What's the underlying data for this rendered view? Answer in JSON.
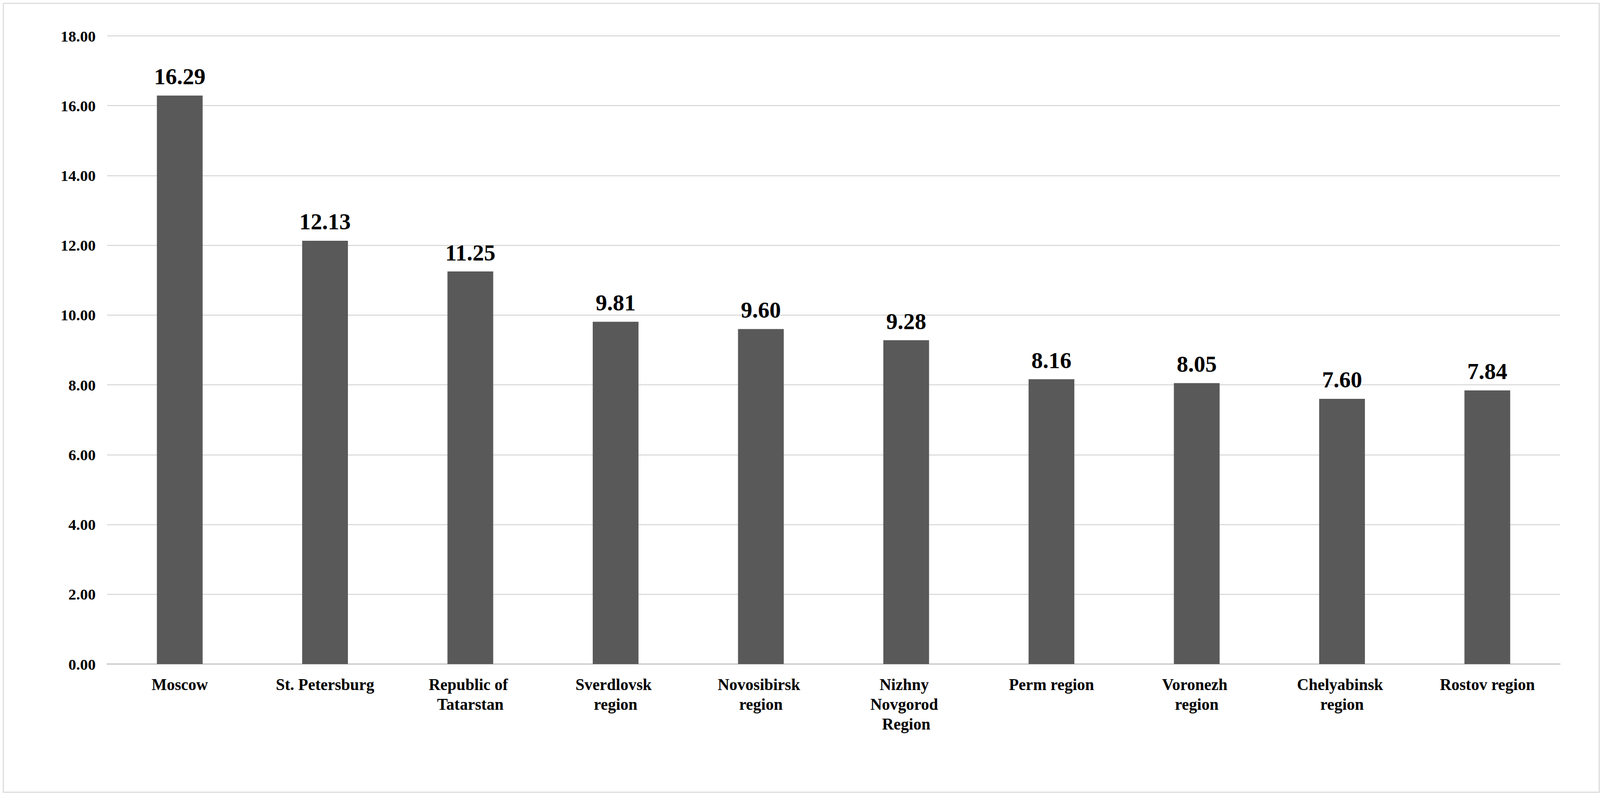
{
  "chart_data": {
    "type": "bar",
    "categories": [
      "Moscow",
      "St. Petersburg",
      "Republic of Tatarstan",
      "Sverdlovsk region",
      "Novosibirsk region",
      "Nizhny Novgorod Region",
      "Perm region",
      "Voronezh region",
      "Chelyabinsk region",
      "Rostov region"
    ],
    "values": [
      16.29,
      12.13,
      11.25,
      9.81,
      9.6,
      9.28,
      8.16,
      8.05,
      7.6,
      7.84
    ],
    "value_labels": [
      "16.29",
      "12.13",
      "11.25",
      "9.81",
      "9.60",
      "9.28",
      "8.16",
      "8.05",
      "7.60",
      "7.84"
    ],
    "color": "#595959",
    "ylim": [
      0,
      18
    ],
    "yticks": [
      {
        "value": 0,
        "label": "0.00"
      },
      {
        "value": 2,
        "label": "2.00"
      },
      {
        "value": 4,
        "label": "4.00"
      },
      {
        "value": 6,
        "label": "6.00"
      },
      {
        "value": 8,
        "label": "8.00"
      },
      {
        "value": 10,
        "label": "10.00"
      },
      {
        "value": 12,
        "label": "12.00"
      },
      {
        "value": 14,
        "label": "14.00"
      },
      {
        "value": 16,
        "label": "16.00"
      },
      {
        "value": 18,
        "label": "18.00"
      }
    ],
    "grid": true,
    "data_labels": true
  }
}
